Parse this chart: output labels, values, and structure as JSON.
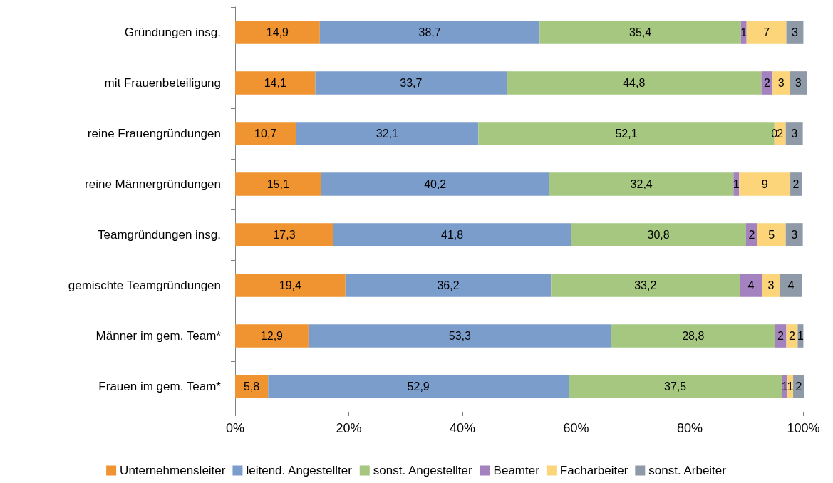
{
  "chart_data": {
    "type": "bar",
    "orientation": "horizontal",
    "stacked": true,
    "legend": "bottom",
    "grid": false,
    "categories": [
      "Gründungen insg.",
      "mit Frauenbeteiligung",
      "reine Frauengründungen",
      "reine Männergründungen",
      "Teamgründungen insg.",
      "gemischte Teamgründungen",
      "Männer im gem. Team*",
      "Frauen im gem. Team*"
    ],
    "xlim": [
      0,
      100.7
    ],
    "xticks": [
      {
        "value": 0,
        "label": "0%"
      },
      {
        "value": 20,
        "label": "20%"
      },
      {
        "value": 40,
        "label": "40%"
      },
      {
        "value": 60,
        "label": "60%"
      },
      {
        "value": 80,
        "label": "80%"
      },
      {
        "value": 100,
        "label": "100%"
      }
    ],
    "series": [
      {
        "name": "Unternehmensleiter",
        "color": "#ef9430",
        "values": [
          14.9,
          14.1,
          10.7,
          15.1,
          17.3,
          19.4,
          12.9,
          5.8
        ],
        "value_labels": [
          "14,9",
          "14,1",
          "10,7",
          "15,1",
          "17,3",
          "19,4",
          "12,9",
          "5,8"
        ]
      },
      {
        "name": "leitend. Angestellter",
        "color": "#7b9dcc",
        "values": [
          38.7,
          33.7,
          32.1,
          40.2,
          41.8,
          36.2,
          53.3,
          52.9
        ],
        "value_labels": [
          "38,7",
          "33,7",
          "32,1",
          "40,2",
          "41,8",
          "36,2",
          "53,3",
          "52,9"
        ]
      },
      {
        "name": "sonst. Angestellter",
        "color": "#a5c77f",
        "values": [
          35.4,
          44.8,
          52.1,
          32.4,
          30.8,
          33.2,
          28.8,
          37.5
        ],
        "value_labels": [
          "35,4",
          "44,8",
          "52,1",
          "32,4",
          "30,8",
          "33,2",
          "28,8",
          "37,5"
        ]
      },
      {
        "name": "Beamter",
        "color": "#a382bf",
        "values": [
          1,
          2,
          0,
          1,
          2,
          4,
          2,
          1
        ],
        "value_labels": [
          "1",
          "2",
          "0",
          "1",
          "2",
          "4",
          "2",
          "1"
        ]
      },
      {
        "name": "Facharbeiter",
        "color": "#fcd57b",
        "values": [
          7,
          3,
          2,
          9,
          5,
          3,
          2,
          1
        ],
        "value_labels": [
          "7",
          "3",
          "2",
          "9",
          "5",
          "3",
          "2",
          "1"
        ]
      },
      {
        "name": "sonst. Arbeiter",
        "color": "#8e9aa7",
        "values": [
          3,
          3,
          3,
          2,
          3,
          4,
          1,
          2
        ],
        "value_labels": [
          "3",
          "3",
          "3",
          "2",
          "3",
          "4",
          "1",
          "2"
        ]
      }
    ]
  }
}
